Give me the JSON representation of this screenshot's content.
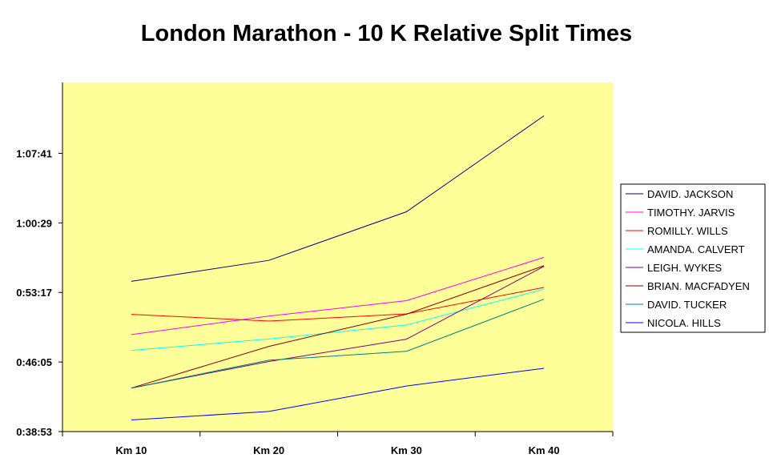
{
  "chart_data": {
    "type": "line",
    "title": "London Marathon - 10 K Relative Split Times",
    "xlabel": "",
    "ylabel": "",
    "categories": [
      "Km 10",
      "Km 20",
      "Km 30",
      "Km 40"
    ],
    "y_ticks": [
      "0:38:53",
      "0:46:05",
      "0:53:17",
      "1:00:29",
      "1:07:41"
    ],
    "ylim_seconds": [
      2333,
      4501
    ],
    "y_unit": "h:mm:ss",
    "plot_background": "#FFFF99",
    "legend_position": "right",
    "series": [
      {
        "name": "DAVID. JACKSON",
        "color": "#000080",
        "values": [
          "0:54:26",
          "0:56:36",
          "1:01:38",
          "1:11:34"
        ]
      },
      {
        "name": "TIMOTHY. JARVIS",
        "color": "#FF00FF",
        "values": [
          "0:48:55",
          "0:50:50",
          "0:52:26",
          "0:56:55"
        ]
      },
      {
        "name": "ROMILLY. WILLS",
        "color": "#FF0000",
        "values": [
          "0:51:01",
          "0:50:19",
          "0:51:04",
          "0:53:48"
        ]
      },
      {
        "name": "AMANDA. CALVERT",
        "color": "#00FFFF",
        "values": [
          "0:47:17",
          "0:48:28",
          "0:49:55",
          "0:53:37"
        ]
      },
      {
        "name": "LEIGH. WYKES",
        "color": "#800080",
        "values": [
          "0:43:23",
          "0:46:08",
          "0:48:27",
          "0:55:59"
        ]
      },
      {
        "name": "BRIAN. MACFADYEN",
        "color": "#800000",
        "values": [
          "0:43:23",
          "0:47:42",
          "0:51:02",
          "0:56:03"
        ]
      },
      {
        "name": "DAVID. TUCKER",
        "color": "#008080",
        "values": [
          "0:43:23",
          "0:46:16",
          "0:47:11",
          "0:52:35"
        ]
      },
      {
        "name": "NICOLA. HILLS",
        "color": "#0000FF",
        "values": [
          "0:40:05",
          "0:40:58",
          "0:43:36",
          "0:45:26"
        ]
      }
    ]
  }
}
